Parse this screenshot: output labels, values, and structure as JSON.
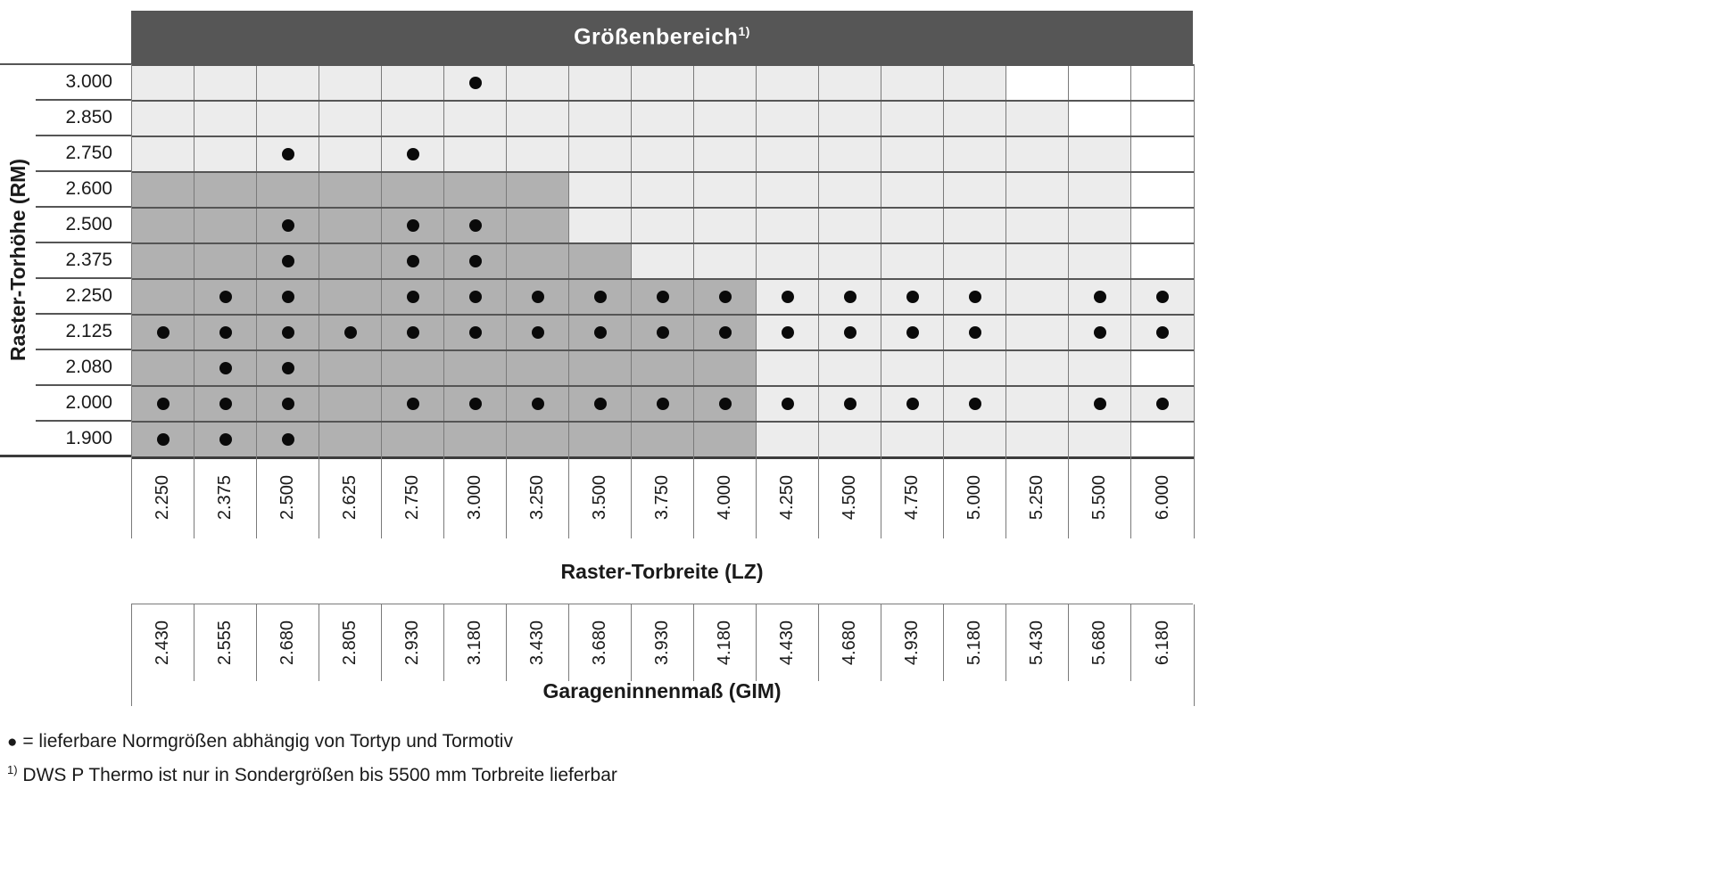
{
  "header": {
    "title": "Größenbereich",
    "superscript": "1)"
  },
  "left_axis": {
    "title": "Raster-Torhöhe (RM)"
  },
  "bottom_axis": {
    "lz_title": "Raster-Torbreite (LZ)",
    "gim_title": "Garageninnenmaß (GIM)"
  },
  "legend": {
    "dot_symbol": "●",
    "dot_text": "= lieferbare Normgrößen abhängig von Tortyp und Tormotiv",
    "footnote_marker": "1)",
    "footnote_text": "DWS P Thermo ist nur in Sondergrößen bis 5500 mm Torbreite lieferbar"
  },
  "colors": {
    "header_bg": "#565656",
    "header_text": "#ffffff",
    "cell_light": "#ececec",
    "cell_dark": "#b1b1b1",
    "cell_white": "#ffffff",
    "dot": "#0a0a0a",
    "grid_line": "#7a7a7a",
    "row_line": "#555555",
    "text": "#1a1a1a"
  },
  "chart_data": {
    "type": "table",
    "title": "Größenbereich 1)",
    "row_axis_label": "Raster-Torhöhe (RM)",
    "col_axis_label": "Raster-Torbreite (LZ)",
    "col_axis2_label": "Garageninnenmaß (GIM)",
    "row_heights_rm": [
      "3.000",
      "2.850",
      "2.750",
      "2.600",
      "2.500",
      "2.375",
      "2.250",
      "2.125",
      "2.080",
      "2.000",
      "1.900"
    ],
    "col_widths_lz": [
      "2.250",
      "2.375",
      "2.500",
      "2.625",
      "2.750",
      "3.000",
      "3.250",
      "3.500",
      "3.750",
      "4.000",
      "4.250",
      "4.500",
      "4.750",
      "5.000",
      "5.250",
      "5.500",
      "6.000"
    ],
    "col_widths_gim": [
      "2.430",
      "2.555",
      "2.680",
      "2.805",
      "2.930",
      "3.180",
      "3.430",
      "3.680",
      "3.930",
      "4.180",
      "4.430",
      "4.680",
      "4.930",
      "5.180",
      "5.430",
      "5.680",
      "6.180"
    ],
    "zone_legend": {
      "D": "dark-gray",
      "L": "light-gray",
      "W": "white"
    },
    "zones": [
      "LLLLLLLLLLLLLLWWW",
      "LLLLLLLLLLLLLLLWW",
      "LLLLLLLLLLLLLLLLW",
      "DDDDDDDLLLLLLLLLW",
      "DDDDDDDLLLLLLLLLW",
      "DDDDDDDDLLLLLLLLW",
      "DDDDDDDDDDLLLLLLL",
      "DDDDDDDDDDLLLLLLL",
      "DDDDDDDDDDLLLLLLW",
      "DDDDDDDDDDLLLLLLL",
      "DDDDDDDDDDLLLLLLW"
    ],
    "dots": [
      [
        0,
        0,
        0,
        0,
        0,
        1,
        0,
        0,
        0,
        0,
        0,
        0,
        0,
        0,
        0,
        0,
        0
      ],
      [
        0,
        0,
        0,
        0,
        0,
        0,
        0,
        0,
        0,
        0,
        0,
        0,
        0,
        0,
        0,
        0,
        0
      ],
      [
        0,
        0,
        1,
        0,
        1,
        0,
        0,
        0,
        0,
        0,
        0,
        0,
        0,
        0,
        0,
        0,
        0
      ],
      [
        0,
        0,
        0,
        0,
        0,
        0,
        0,
        0,
        0,
        0,
        0,
        0,
        0,
        0,
        0,
        0,
        0
      ],
      [
        0,
        0,
        1,
        0,
        1,
        1,
        0,
        0,
        0,
        0,
        0,
        0,
        0,
        0,
        0,
        0,
        0
      ],
      [
        0,
        0,
        1,
        0,
        1,
        1,
        0,
        0,
        0,
        0,
        0,
        0,
        0,
        0,
        0,
        0,
        0
      ],
      [
        0,
        1,
        1,
        0,
        1,
        1,
        1,
        1,
        1,
        1,
        1,
        1,
        1,
        1,
        0,
        1,
        1
      ],
      [
        1,
        1,
        1,
        1,
        1,
        1,
        1,
        1,
        1,
        1,
        1,
        1,
        1,
        1,
        0,
        1,
        1
      ],
      [
        0,
        1,
        1,
        0,
        0,
        0,
        0,
        0,
        0,
        0,
        0,
        0,
        0,
        0,
        0,
        0,
        0
      ],
      [
        1,
        1,
        1,
        0,
        1,
        1,
        1,
        1,
        1,
        1,
        1,
        1,
        1,
        1,
        0,
        1,
        1
      ],
      [
        1,
        1,
        1,
        0,
        0,
        0,
        0,
        0,
        0,
        0,
        0,
        0,
        0,
        0,
        0,
        0,
        0
      ]
    ],
    "legend_text": "● = lieferbare Normgrößen abhängig von Tortyp und Tormotiv",
    "footnote_text": "1) DWS P Thermo ist nur in Sondergrößen bis 5500 mm Torbreite lieferbar"
  }
}
